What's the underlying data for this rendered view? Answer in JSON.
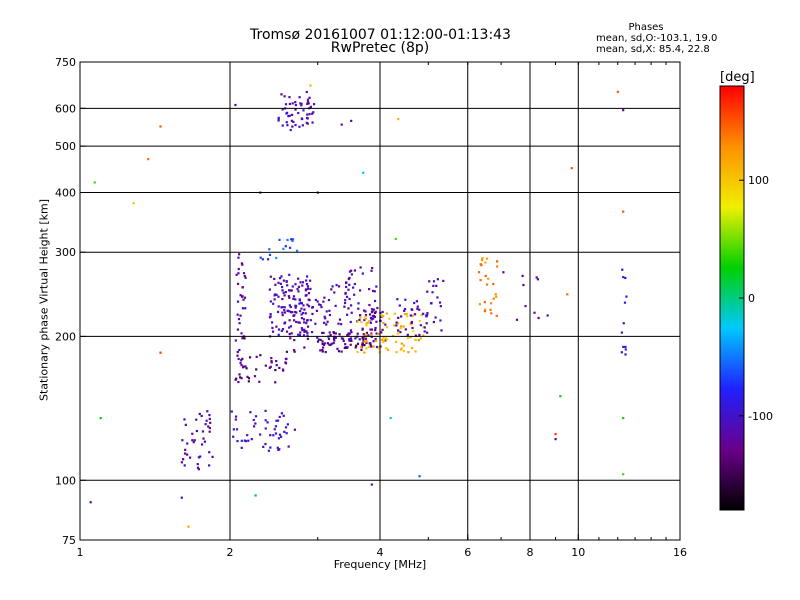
{
  "title": "Tromsø 20161007 01:12:00-01:13:43",
  "subtitle": "RwPretec (8p)",
  "phases": {
    "title": "Phases",
    "o_line": "mean, sd,O:-103.1, 19.0",
    "x_line": "mean, sd,X:  85.4, 22.8"
  },
  "colorbar": {
    "unit": "[deg]",
    "ticks": [
      {
        "value": 100,
        "label": "100"
      },
      {
        "value": 0,
        "label": "0"
      },
      {
        "value": -100,
        "label": "-100"
      }
    ],
    "range": [
      -180,
      180
    ],
    "colors": [
      "#000000",
      "#6a008a",
      "#2020ff",
      "#00c8ff",
      "#00d000",
      "#f0f000",
      "#ff9000",
      "#ff0000"
    ]
  },
  "chart_data": {
    "type": "scatter",
    "title": "Tromsø 20161007 01:12:00-01:13:43",
    "subtitle": "RwPretec (8p)",
    "xlabel": "Frequency [MHz]",
    "ylabel": "Stationary phase Virtual Height [km]",
    "xscale": "log",
    "xlim": [
      1,
      16
    ],
    "ylim": [
      75,
      750
    ],
    "xticks": [
      {
        "value": 1,
        "label": "1"
      },
      {
        "value": 2,
        "label": "2"
      },
      {
        "value": 4,
        "label": "4"
      },
      {
        "value": 6,
        "label": "6"
      },
      {
        "value": 8,
        "label": "8"
      },
      {
        "value": 10,
        "label": "10"
      },
      {
        "value": 16,
        "label": "16"
      }
    ],
    "yticks": [
      {
        "value": 75,
        "label": "75"
      },
      {
        "value": 100,
        "label": "100"
      },
      {
        "value": 200,
        "label": "200"
      },
      {
        "value": 300,
        "label": "300"
      },
      {
        "value": 400,
        "label": "400"
      },
      {
        "value": 500,
        "label": "500"
      },
      {
        "value": 600,
        "label": "600"
      },
      {
        "value": 750,
        "label": "750"
      }
    ],
    "xgrid": [
      2,
      4,
      6,
      8,
      10
    ],
    "ygrid": [
      100,
      200,
      300,
      400,
      500,
      600
    ],
    "grid": true,
    "clusters": [
      {
        "f": [
          2.5,
          2.95
        ],
        "h": [
          540,
          650
        ],
        "n": 55,
        "phase": -110
      },
      {
        "f": [
          2.05,
          2.15
        ],
        "h": [
          170,
          300
        ],
        "n": 40,
        "phase": -120
      },
      {
        "f": [
          2.05,
          2.6
        ],
        "h": [
          160,
          185
        ],
        "n": 35,
        "phase": -130
      },
      {
        "f": [
          2.4,
          2.9
        ],
        "h": [
          200,
          270
        ],
        "n": 110,
        "phase": -110
      },
      {
        "f": [
          2.6,
          3.5
        ],
        "h": [
          185,
          260
        ],
        "n": 90,
        "phase": -115
      },
      {
        "f": [
          3.0,
          3.9
        ],
        "h": [
          185,
          205
        ],
        "n": 60,
        "phase": -130
      },
      {
        "f": [
          3.4,
          3.95
        ],
        "h": [
          195,
          280
        ],
        "n": 60,
        "phase": -110
      },
      {
        "f": [
          3.8,
          4.1
        ],
        "h": [
          190,
          230
        ],
        "n": 30,
        "phase": -120
      },
      {
        "f": [
          3.6,
          4.9
        ],
        "h": [
          185,
          225
        ],
        "n": 80,
        "phase": 110
      },
      {
        "f": [
          4.3,
          5.0
        ],
        "h": [
          200,
          240
        ],
        "n": 35,
        "phase": -110
      },
      {
        "f": [
          4.8,
          5.4
        ],
        "h": [
          205,
          265
        ],
        "n": 20,
        "phase": -110
      },
      {
        "f": [
          1.6,
          1.85
        ],
        "h": [
          105,
          140
        ],
        "n": 40,
        "phase": -115
      },
      {
        "f": [
          2.0,
          2.7
        ],
        "h": [
          115,
          140
        ],
        "n": 50,
        "phase": -100
      },
      {
        "f": [
          2.3,
          2.8
        ],
        "h": [
          290,
          320
        ],
        "n": 15,
        "phase": -60
      },
      {
        "f": [
          6.3,
          6.9
        ],
        "h": [
          220,
          295
        ],
        "n": 25,
        "phase": 130
      },
      {
        "f": [
          7.0,
          8.7
        ],
        "h": [
          215,
          280
        ],
        "n": 10,
        "phase": -110
      },
      {
        "f": [
          12.2,
          12.5
        ],
        "h": [
          180,
          280
        ],
        "n": 12,
        "phase": -100
      }
    ],
    "points": [
      {
        "x": 1.07,
        "y": 420,
        "phase": 40
      },
      {
        "x": 1.1,
        "y": 135,
        "phase": 20
      },
      {
        "x": 1.05,
        "y": 90,
        "phase": -120
      },
      {
        "x": 1.28,
        "y": 380,
        "phase": 100
      },
      {
        "x": 1.37,
        "y": 470,
        "phase": 140
      },
      {
        "x": 1.45,
        "y": 550,
        "phase": 150
      },
      {
        "x": 1.45,
        "y": 185,
        "phase": 160
      },
      {
        "x": 1.65,
        "y": 80,
        "phase": 120
      },
      {
        "x": 1.6,
        "y": 92,
        "phase": -100
      },
      {
        "x": 2.25,
        "y": 93,
        "phase": 20
      },
      {
        "x": 2.05,
        "y": 610,
        "phase": -110
      },
      {
        "x": 2.3,
        "y": 400,
        "phase": -100
      },
      {
        "x": 3.0,
        "y": 400,
        "phase": -120
      },
      {
        "x": 3.35,
        "y": 555,
        "phase": -110
      },
      {
        "x": 3.5,
        "y": 565,
        "phase": -110
      },
      {
        "x": 3.7,
        "y": 440,
        "phase": -20
      },
      {
        "x": 3.85,
        "y": 98,
        "phase": -110
      },
      {
        "x": 4.35,
        "y": 570,
        "phase": 110
      },
      {
        "x": 4.3,
        "y": 320,
        "phase": 40
      },
      {
        "x": 4.2,
        "y": 135,
        "phase": -20
      },
      {
        "x": 4.8,
        "y": 102,
        "phase": -60
      },
      {
        "x": 9.0,
        "y": 125,
        "phase": 160
      },
      {
        "x": 9.0,
        "y": 122,
        "phase": -120
      },
      {
        "x": 9.2,
        "y": 150,
        "phase": 20
      },
      {
        "x": 9.7,
        "y": 450,
        "phase": 150
      },
      {
        "x": 9.5,
        "y": 245,
        "phase": 140
      },
      {
        "x": 12.0,
        "y": 650,
        "phase": 150
      },
      {
        "x": 12.3,
        "y": 595,
        "phase": -120
      },
      {
        "x": 12.3,
        "y": 365,
        "phase": 150
      },
      {
        "x": 12.3,
        "y": 135,
        "phase": 30
      },
      {
        "x": 12.3,
        "y": 103,
        "phase": 40
      },
      {
        "x": 2.9,
        "y": 670,
        "phase": 110
      }
    ]
  }
}
